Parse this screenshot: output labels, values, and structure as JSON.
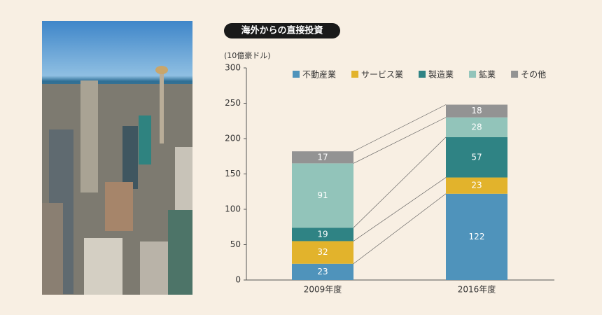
{
  "chart_data": {
    "type": "stacked-bar",
    "title": "海外からの直接投資",
    "y_label": "(10億豪ドル)",
    "categories": [
      "2009年度",
      "2016年度"
    ],
    "series": [
      {
        "name": "不動産業",
        "color": "#4f93bb",
        "values": [
          23,
          122
        ]
      },
      {
        "name": "サービス業",
        "color": "#e2b32c",
        "values": [
          32,
          23
        ]
      },
      {
        "name": "製造業",
        "color": "#2f8384",
        "values": [
          19,
          57
        ]
      },
      {
        "name": "鉱業",
        "color": "#92c4ba",
        "values": [
          91,
          28
        ]
      },
      {
        "name": "その他",
        "color": "#939393",
        "values": [
          17,
          18
        ]
      }
    ],
    "ylim": [
      0,
      300
    ],
    "yticks": [
      0,
      50,
      100,
      150,
      200,
      250,
      300
    ],
    "legend": "top",
    "connectors": true
  }
}
